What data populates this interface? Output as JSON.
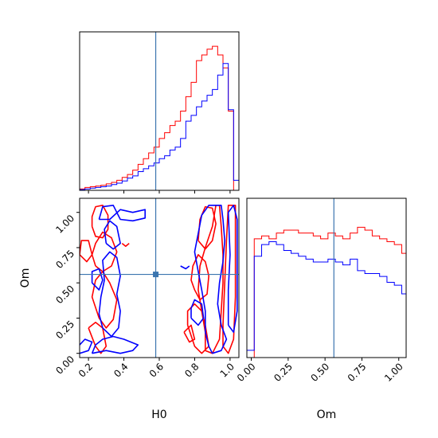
{
  "chart_data": {
    "type": "corner",
    "parameters": [
      "H0",
      "Om"
    ],
    "truth": {
      "H0": 0.58,
      "Om": 0.56,
      "color": "#3b75af"
    },
    "series_colors": {
      "red": "#ff0000",
      "blue": "#0000ff"
    },
    "xlim_H0": [
      0.15,
      1.05
    ],
    "xlim_Om": [
      -0.03,
      1.05
    ],
    "ylim_Om": [
      -0.03,
      1.1
    ],
    "ticks_H0": [
      "0.2",
      "0.4",
      "0.6",
      "0.8",
      "1.0"
    ],
    "ticks_Om": [
      "0.00",
      "0.25",
      "0.50",
      "0.75",
      "1.00"
    ],
    "hist_H0": {
      "edges_start": 0.15,
      "bin_width": 0.03,
      "red": [
        0.01,
        0.02,
        0.025,
        0.03,
        0.035,
        0.045,
        0.055,
        0.07,
        0.09,
        0.11,
        0.14,
        0.18,
        0.22,
        0.26,
        0.3,
        0.36,
        0.4,
        0.45,
        0.48,
        0.55,
        0.65,
        0.75,
        0.9,
        0.94,
        0.98,
        1.0,
        0.94,
        0.85,
        0.55,
        0.0
      ],
      "blue": [
        0.005,
        0.01,
        0.015,
        0.02,
        0.025,
        0.03,
        0.04,
        0.05,
        0.065,
        0.085,
        0.1,
        0.13,
        0.15,
        0.17,
        0.19,
        0.22,
        0.24,
        0.28,
        0.3,
        0.36,
        0.48,
        0.52,
        0.58,
        0.62,
        0.66,
        0.7,
        0.8,
        0.88,
        0.56,
        0.07
      ]
    },
    "hist_Om": {
      "edges_start": -0.03,
      "bin_width": 0.05,
      "red": [
        0.0,
        0.82,
        0.84,
        0.82,
        0.86,
        0.88,
        0.88,
        0.86,
        0.86,
        0.84,
        0.82,
        0.86,
        0.84,
        0.82,
        0.86,
        0.9,
        0.88,
        0.84,
        0.82,
        0.8,
        0.78,
        0.72,
        0.0
      ],
      "blue": [
        0.05,
        0.7,
        0.78,
        0.8,
        0.78,
        0.74,
        0.72,
        0.7,
        0.68,
        0.66,
        0.66,
        0.68,
        0.66,
        0.64,
        0.68,
        0.6,
        0.58,
        0.58,
        0.56,
        0.52,
        0.5,
        0.44,
        0.05
      ]
    },
    "contours": {
      "red": [
        [
          [
            0.2,
            0.18
          ],
          [
            0.24,
            0.05
          ],
          [
            0.27,
            0.0
          ],
          [
            0.3,
            0.05
          ],
          [
            0.28,
            0.18
          ],
          [
            0.24,
            0.22
          ],
          [
            0.2,
            0.18
          ]
        ],
        [
          [
            0.26,
            0.25
          ],
          [
            0.3,
            0.18
          ],
          [
            0.34,
            0.24
          ],
          [
            0.36,
            0.38
          ],
          [
            0.32,
            0.5
          ],
          [
            0.28,
            0.58
          ],
          [
            0.24,
            0.52
          ],
          [
            0.22,
            0.4
          ],
          [
            0.26,
            0.25
          ]
        ],
        [
          [
            0.24,
            0.62
          ],
          [
            0.28,
            0.58
          ],
          [
            0.33,
            0.62
          ],
          [
            0.36,
            0.72
          ],
          [
            0.33,
            0.82
          ],
          [
            0.28,
            0.86
          ],
          [
            0.24,
            0.78
          ],
          [
            0.22,
            0.7
          ],
          [
            0.24,
            0.62
          ]
        ],
        [
          [
            0.15,
            0.7
          ],
          [
            0.19,
            0.65
          ],
          [
            0.22,
            0.7
          ],
          [
            0.2,
            0.8
          ],
          [
            0.16,
            0.8
          ],
          [
            0.15,
            0.7
          ]
        ],
        [
          [
            0.22,
            0.9
          ],
          [
            0.24,
            0.83
          ],
          [
            0.28,
            0.82
          ],
          [
            0.31,
            0.88
          ],
          [
            0.31,
            0.98
          ],
          [
            0.28,
            1.05
          ],
          [
            0.24,
            1.04
          ],
          [
            0.22,
            0.97
          ],
          [
            0.22,
            0.9
          ]
        ],
        [
          [
            0.39,
            0.78
          ],
          [
            0.41,
            0.76
          ],
          [
            0.43,
            0.78
          ]
        ],
        [
          [
            0.76,
            0.2
          ],
          [
            0.8,
            0.05
          ],
          [
            0.84,
            0.0
          ],
          [
            0.88,
            0.05
          ],
          [
            0.86,
            0.2
          ],
          [
            0.84,
            0.3
          ],
          [
            0.8,
            0.35
          ],
          [
            0.76,
            0.3
          ],
          [
            0.76,
            0.2
          ]
        ],
        [
          [
            0.74,
            0.15
          ],
          [
            0.77,
            0.08
          ],
          [
            0.8,
            0.1
          ],
          [
            0.78,
            0.2
          ],
          [
            0.74,
            0.15
          ]
        ],
        [
          [
            0.86,
            0.02
          ],
          [
            0.9,
            0.0
          ],
          [
            0.94,
            0.1
          ],
          [
            0.95,
            0.3
          ],
          [
            0.96,
            0.5
          ],
          [
            0.96,
            0.7
          ],
          [
            0.95,
            0.9
          ],
          [
            0.94,
            1.05
          ],
          [
            0.92,
            1.05
          ],
          [
            0.9,
            0.9
          ],
          [
            0.86,
            0.75
          ],
          [
            0.83,
            0.62
          ],
          [
            0.82,
            0.45
          ],
          [
            0.84,
            0.3
          ],
          [
            0.86,
            0.15
          ],
          [
            0.86,
            0.02
          ]
        ],
        [
          [
            0.8,
            0.45
          ],
          [
            0.83,
            0.38
          ],
          [
            0.87,
            0.42
          ],
          [
            0.88,
            0.55
          ],
          [
            0.86,
            0.65
          ],
          [
            0.82,
            0.7
          ],
          [
            0.79,
            0.62
          ],
          [
            0.78,
            0.52
          ],
          [
            0.8,
            0.45
          ]
        ],
        [
          [
            0.82,
            0.8
          ],
          [
            0.86,
            0.74
          ],
          [
            0.9,
            0.8
          ],
          [
            0.92,
            0.92
          ],
          [
            0.9,
            1.03
          ],
          [
            0.86,
            1.04
          ],
          [
            0.83,
            0.95
          ],
          [
            0.82,
            0.8
          ]
        ],
        [
          [
            0.96,
            0.05
          ],
          [
            0.99,
            0.0
          ],
          [
            1.02,
            0.1
          ],
          [
            1.03,
            0.4
          ],
          [
            1.03,
            0.7
          ],
          [
            1.03,
            1.05
          ],
          [
            0.99,
            1.05
          ],
          [
            0.98,
            0.8
          ],
          [
            0.97,
            0.5
          ],
          [
            0.96,
            0.2
          ],
          [
            0.96,
            0.05
          ]
        ]
      ],
      "blue": [
        [
          [
            0.15,
            0.0
          ],
          [
            0.2,
            0.02
          ],
          [
            0.22,
            0.08
          ],
          [
            0.18,
            0.1
          ],
          [
            0.15,
            0.06
          ]
        ],
        [
          [
            0.22,
            0.0
          ],
          [
            0.3,
            0.02
          ],
          [
            0.38,
            0.0
          ],
          [
            0.45,
            0.02
          ],
          [
            0.48,
            0.06
          ],
          [
            0.4,
            0.1
          ],
          [
            0.34,
            0.12
          ],
          [
            0.28,
            0.1
          ],
          [
            0.24,
            0.06
          ],
          [
            0.22,
            0.0
          ]
        ],
        [
          [
            0.28,
            0.18
          ],
          [
            0.33,
            0.12
          ],
          [
            0.37,
            0.18
          ],
          [
            0.38,
            0.3
          ],
          [
            0.36,
            0.42
          ],
          [
            0.38,
            0.55
          ],
          [
            0.36,
            0.68
          ],
          [
            0.32,
            0.72
          ],
          [
            0.28,
            0.66
          ],
          [
            0.29,
            0.52
          ],
          [
            0.27,
            0.4
          ],
          [
            0.26,
            0.28
          ],
          [
            0.28,
            0.18
          ]
        ],
        [
          [
            0.22,
            0.5
          ],
          [
            0.26,
            0.45
          ],
          [
            0.28,
            0.52
          ],
          [
            0.26,
            0.6
          ],
          [
            0.22,
            0.58
          ],
          [
            0.22,
            0.5
          ]
        ],
        [
          [
            0.3,
            0.78
          ],
          [
            0.34,
            0.74
          ],
          [
            0.38,
            0.78
          ],
          [
            0.36,
            0.9
          ],
          [
            0.32,
            0.94
          ],
          [
            0.29,
            0.88
          ],
          [
            0.3,
            0.78
          ]
        ],
        [
          [
            0.26,
            0.95
          ],
          [
            0.32,
            0.95
          ],
          [
            0.38,
            1.02
          ],
          [
            0.45,
            1.0
          ],
          [
            0.52,
            1.02
          ],
          [
            0.52,
            0.96
          ],
          [
            0.45,
            0.94
          ],
          [
            0.38,
            0.95
          ],
          [
            0.34,
            1.05
          ],
          [
            0.28,
            1.04
          ],
          [
            0.26,
            0.95
          ]
        ],
        [
          [
            0.72,
            0.62
          ],
          [
            0.75,
            0.6
          ],
          [
            0.77,
            0.62
          ]
        ],
        [
          [
            0.9,
            0.0
          ],
          [
            0.95,
            0.02
          ],
          [
            0.98,
            0.1
          ],
          [
            0.95,
            0.2
          ],
          [
            0.93,
            0.35
          ],
          [
            0.94,
            0.5
          ],
          [
            0.96,
            0.65
          ],
          [
            0.97,
            0.8
          ],
          [
            0.96,
            0.95
          ],
          [
            0.95,
            1.05
          ],
          [
            0.88,
            1.05
          ],
          [
            0.84,
            0.98
          ],
          [
            0.82,
            0.85
          ],
          [
            0.8,
            0.72
          ],
          [
            0.82,
            0.58
          ],
          [
            0.84,
            0.45
          ],
          [
            0.86,
            0.3
          ],
          [
            0.86,
            0.15
          ],
          [
            0.88,
            0.05
          ],
          [
            0.9,
            0.0
          ]
        ],
        [
          [
            0.78,
            0.25
          ],
          [
            0.82,
            0.2
          ],
          [
            0.85,
            0.25
          ],
          [
            0.84,
            0.35
          ],
          [
            0.8,
            0.38
          ],
          [
            0.78,
            0.32
          ],
          [
            0.78,
            0.25
          ]
        ],
        [
          [
            0.99,
            0.2
          ],
          [
            1.02,
            0.15
          ],
          [
            1.04,
            0.3
          ],
          [
            1.04,
            0.6
          ],
          [
            1.04,
            0.95
          ],
          [
            1.02,
            1.05
          ],
          [
            0.99,
            1.0
          ],
          [
            1.0,
            0.7
          ],
          [
            0.99,
            0.45
          ],
          [
            0.99,
            0.2
          ]
        ]
      ]
    }
  }
}
